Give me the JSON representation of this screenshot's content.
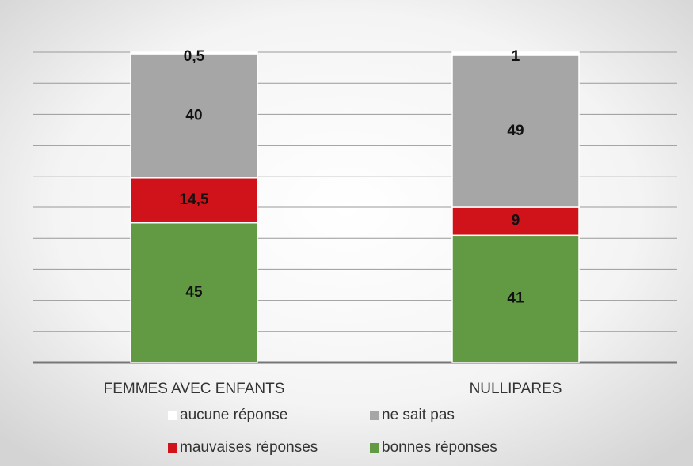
{
  "chart_data": {
    "type": "stacked_bar",
    "categories": [
      "FEMMES AVEC ENFANTS",
      "NULLIPARES"
    ],
    "series": [
      {
        "name": "aucune réponse",
        "color": "#ffffff",
        "values": [
          0.5,
          1
        ],
        "value_labels": [
          "0,5",
          "1"
        ]
      },
      {
        "name": "ne sait pas",
        "color": "#a6a6a6",
        "values": [
          40,
          49
        ]
      },
      {
        "name": "mauvaises réponses",
        "color": "#d0121b",
        "values": [
          14.5,
          9
        ],
        "value_labels": [
          "14,5",
          "9"
        ]
      },
      {
        "name": "bonnes réponses",
        "color": "#629a43",
        "values": [
          45,
          41
        ]
      }
    ],
    "ylim": [
      0,
      100
    ],
    "yticks": [
      0,
      10,
      20,
      30,
      40,
      50,
      60,
      70,
      80,
      90,
      100
    ],
    "grid": true,
    "legend": "bottom"
  }
}
